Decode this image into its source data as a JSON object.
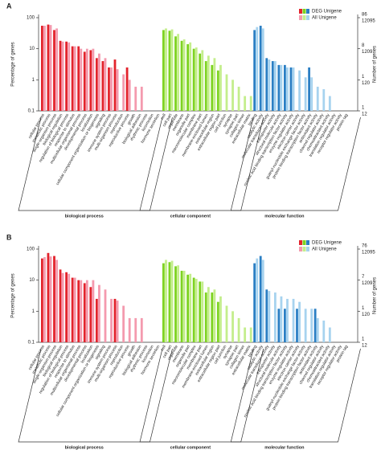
{
  "chart_data": [
    {
      "type": "bar",
      "label": "A",
      "log_y": true,
      "ylabel": "Percentage of genes",
      "y2label": "Number of genes",
      "ylim": [
        0.1,
        100
      ],
      "yticks": [
        0.1,
        1,
        10,
        100
      ],
      "deg_count_ticks": [
        {
          "value": 100,
          "label": "86"
        },
        {
          "value": 10,
          "label": "8"
        },
        {
          "value": 1,
          "label": "1"
        },
        {
          "value": 0.1,
          "label": "1"
        }
      ],
      "all_count_ticks": [
        {
          "value": 100,
          "label": "12095"
        },
        {
          "value": 10,
          "label": "1209"
        },
        {
          "value": 1,
          "label": "120"
        },
        {
          "value": 0.1,
          "label": "12"
        }
      ],
      "groups": [
        {
          "name": "biological process",
          "categories": [
            "cellular process",
            "metabolic process",
            "single-organism process",
            "biological regulation",
            "regulation of biological process",
            "response to stimulus",
            "multicellular organismal process",
            "developmental process",
            "localization",
            "cellular component organization or biogenesis",
            "signaling",
            "immune system process",
            "multi-organism process",
            "reproduction",
            "reproductive process",
            "growth",
            "biological adhesion",
            "rhythmic process",
            "locomotion",
            "hormone secretion"
          ]
        },
        {
          "name": "cellular component",
          "categories": [
            "cell",
            "cell part",
            "organelle",
            "membrane",
            "organelle part",
            "macromolecular complex",
            "membrane part",
            "membrane-enclosed lumen",
            "extracellular region",
            "extracellular region part",
            "cell junction",
            "synapse",
            "synapse part",
            "collagen trimer",
            "extracellular matrix"
          ]
        },
        {
          "name": "molecular function",
          "categories": [
            "binding",
            "catalytic activity",
            "molecular transducer activity",
            "transporter activity",
            "structural molecule activity",
            "nucleic acid binding transcription factor activity",
            "enzyme regulator activity",
            "electron carrier activity",
            "guanyl-nucleotide exchange factor activity",
            "protein binding transcription factor activity",
            "antioxidant activity",
            "channel regulator activity",
            "chemoattractant activity",
            "translation regulator activity",
            "receptor regulator activity",
            "protein tag"
          ]
        }
      ],
      "series": [
        {
          "name": "DEG Unigene",
          "colors": [
            "#e3232c",
            "#7ed321",
            "#2b7fc4"
          ],
          "values": [
            55,
            60,
            40,
            18,
            17,
            12,
            12,
            8,
            9,
            5,
            4,
            2.5,
            4.5,
            null,
            2.5,
            null,
            null,
            null,
            null,
            null,
            40,
            38,
            25,
            18,
            14,
            10,
            7,
            4,
            3,
            2,
            null,
            null,
            null,
            null,
            null,
            40,
            55,
            5,
            4,
            3,
            3,
            2.5,
            null,
            null,
            2.5,
            null,
            null,
            null,
            null,
            null,
            null
          ]
        },
        {
          "name": "All Unigene",
          "colors": [
            "#f49aae",
            "#c4ee8c",
            "#a7d3ef"
          ],
          "values": [
            55,
            58,
            45,
            17,
            16,
            12,
            10,
            10,
            10,
            7,
            5,
            2.5,
            2.2,
            1.5,
            1,
            0.6,
            0.6,
            null,
            null,
            null,
            45,
            42,
            30,
            20,
            16,
            11,
            9,
            6,
            5,
            3,
            1.5,
            1,
            0.6,
            0.3,
            0.3,
            50,
            45,
            4.5,
            4,
            3,
            2.5,
            2.5,
            2,
            1.2,
            1.2,
            0.6,
            0.5,
            0.3,
            null,
            null,
            null
          ]
        }
      ]
    },
    {
      "type": "bar",
      "label": "B",
      "log_y": true,
      "ylabel": "Percentage of genes",
      "y2label": "Number of genes",
      "ylim": [
        0.1,
        100
      ],
      "yticks": [
        0.1,
        1,
        10,
        100
      ],
      "deg_count_ticks": [
        {
          "value": 100,
          "label": "76"
        },
        {
          "value": 10,
          "label": "7"
        },
        {
          "value": 1,
          "label": "1"
        },
        {
          "value": 0.1,
          "label": "1"
        }
      ],
      "all_count_ticks": [
        {
          "value": 100,
          "label": "12095"
        },
        {
          "value": 10,
          "label": "1209"
        },
        {
          "value": 1,
          "label": "120"
        },
        {
          "value": 0.1,
          "label": "12"
        }
      ],
      "groups": [
        {
          "name": "biological process",
          "categories": [
            "cellular process",
            "metabolic process",
            "single-organism process",
            "biological regulation",
            "regulation of biological process",
            "response to stimulus",
            "multicellular organismal process",
            "developmental process",
            "localization",
            "cellular component organization or biogenesis",
            "signaling",
            "immune system process",
            "multi-organism process",
            "reproduction",
            "reproductive process",
            "growth",
            "biological adhesion",
            "rhythmic process",
            "locomotion",
            "hormone secretion"
          ]
        },
        {
          "name": "cellular component",
          "categories": [
            "cell",
            "cell part",
            "organelle",
            "membrane",
            "organelle part",
            "macromolecular complex",
            "membrane part",
            "membrane-enclosed lumen",
            "extracellular region",
            "extracellular region part",
            "cell junction",
            "synapse",
            "synapse part",
            "collagen trimer",
            "extracellular matrix"
          ]
        },
        {
          "name": "molecular function",
          "categories": [
            "binding",
            "catalytic activity",
            "molecular transducer activity",
            "transporter activity",
            "structural molecule activity",
            "nucleic acid binding transcription factor activity",
            "enzyme regulator activity",
            "electron carrier activity",
            "guanyl-nucleotide exchange factor activity",
            "protein binding transcription factor activity",
            "antioxidant activity",
            "channel regulator activity",
            "chemoattractant activity",
            "translation regulator activity",
            "receptor regulator activity",
            "protein tag"
          ]
        }
      ],
      "series": [
        {
          "name": "DEG Unigene",
          "colors": [
            "#e3232c",
            "#7ed321",
            "#2b7fc4"
          ],
          "values": [
            50,
            75,
            60,
            22,
            18,
            12,
            10,
            8,
            6,
            2.5,
            null,
            null,
            2.5,
            null,
            null,
            null,
            null,
            null,
            null,
            null,
            35,
            38,
            28,
            20,
            15,
            12,
            9,
            4,
            4,
            2,
            null,
            null,
            null,
            null,
            null,
            35,
            60,
            5,
            null,
            1.2,
            1.2,
            null,
            1.2,
            null,
            null,
            1.2,
            null,
            null,
            null,
            null,
            null
          ]
        },
        {
          "name": "All Unigene",
          "colors": [
            "#f49aae",
            "#c4ee8c",
            "#a7d3ef"
          ],
          "values": [
            55,
            58,
            45,
            17,
            16,
            12,
            10,
            10,
            10,
            7,
            5,
            2.5,
            2.2,
            1.5,
            0.6,
            0.6,
            0.6,
            null,
            null,
            null,
            45,
            42,
            30,
            20,
            16,
            11,
            9,
            6,
            5,
            3,
            1.5,
            1,
            0.6,
            0.3,
            0.3,
            50,
            45,
            4.5,
            4,
            3,
            2.5,
            2.5,
            2,
            1.2,
            1.2,
            0.6,
            0.5,
            0.3,
            null,
            null,
            null
          ]
        }
      ]
    }
  ]
}
